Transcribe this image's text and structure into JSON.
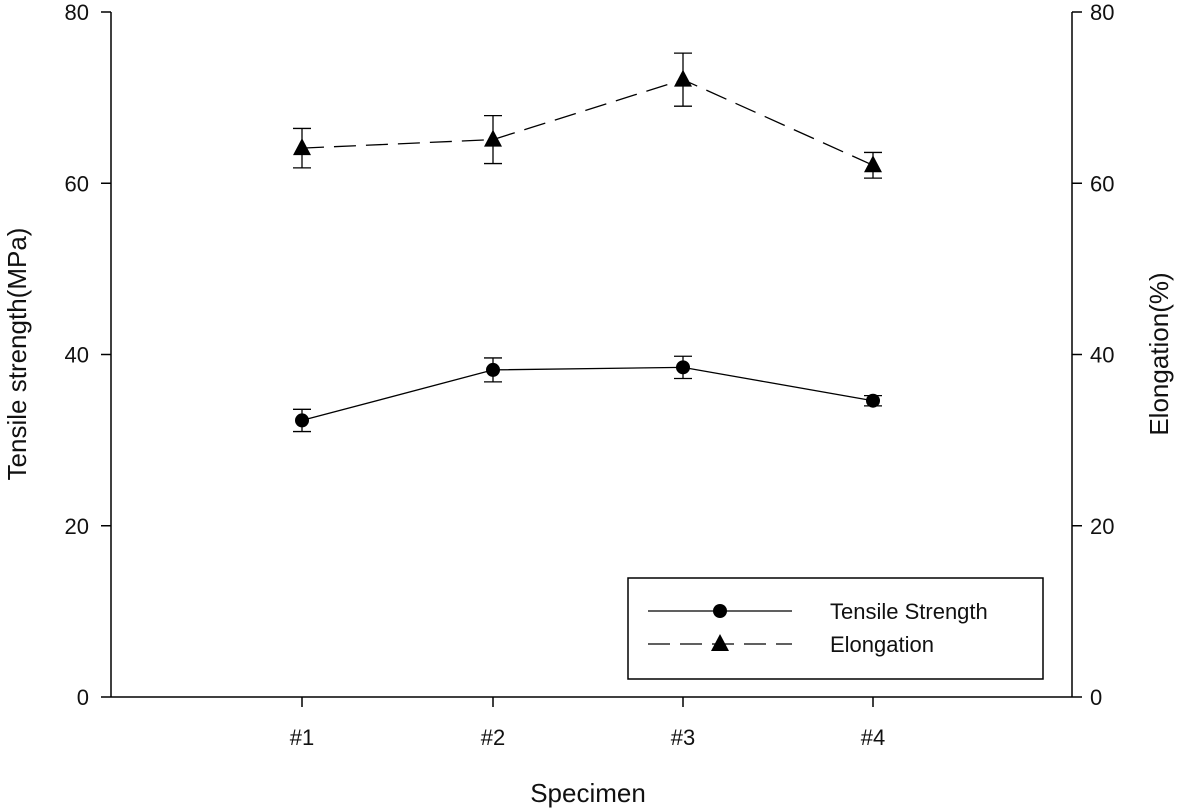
{
  "chart_data": {
    "type": "line",
    "title": "",
    "xlabel": "Specimen",
    "ylabel": "Tensile strength(MPa)",
    "y2label": "Elongation(%)",
    "categories": [
      "#1",
      "#2",
      "#3",
      "#4"
    ],
    "ylim": [
      0,
      80
    ],
    "y2lim": [
      0,
      80
    ],
    "yticks": [
      "0",
      "20",
      "40",
      "60",
      "80"
    ],
    "y2ticks": [
      "0",
      "20",
      "40",
      "60",
      "80"
    ],
    "grid": false,
    "legend_position": "bottom-right",
    "series": [
      {
        "name": "Tensile Strength",
        "axis": "left",
        "marker": "circle",
        "line_style": "solid",
        "values": [
          32.3,
          38.2,
          38.5,
          34.6
        ],
        "errors": [
          1.3,
          1.4,
          1.3,
          0.6
        ]
      },
      {
        "name": "Elongation",
        "axis": "right",
        "marker": "triangle",
        "line_style": "dashed",
        "values": [
          64.1,
          65.1,
          72.1,
          62.1
        ],
        "errors": [
          2.3,
          2.8,
          3.1,
          1.5
        ]
      }
    ]
  }
}
